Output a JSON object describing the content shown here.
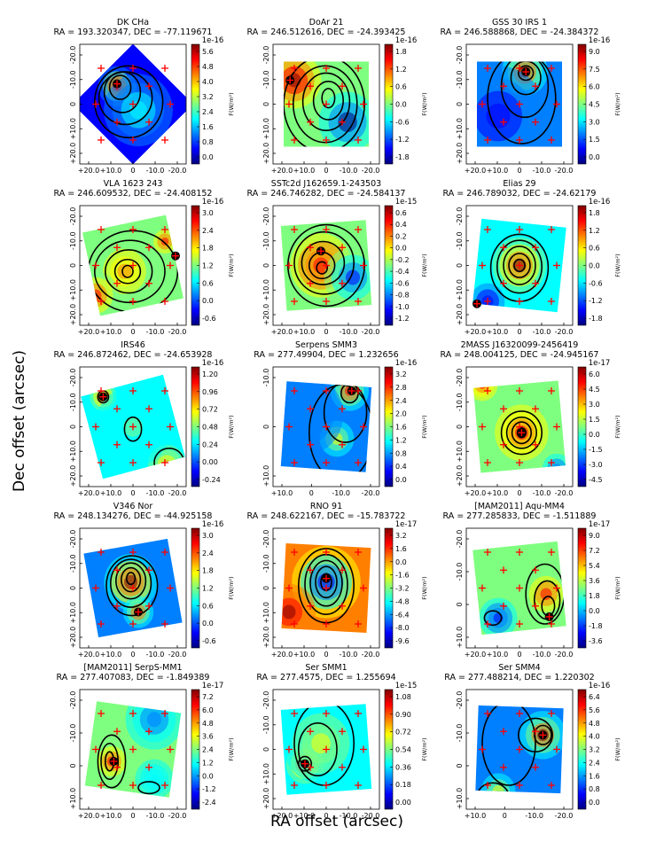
{
  "figure": {
    "xlabel": "RA offset (arcsec)",
    "ylabel": "Dec offset (arcsec)",
    "cbar_label": "F(W/m²)",
    "colormap": [
      "#00007f",
      "#0000ff",
      "#007fff",
      "#00ffff",
      "#7fff7f",
      "#ffff00",
      "#ff7f00",
      "#ff0000",
      "#7f0000"
    ],
    "contour_color": "#000000",
    "marker_color": "#ff0000"
  },
  "chart_data": [
    {
      "type": "heatmap",
      "name": "DK CHa",
      "coords": "RA = 193.320347, DEC = -77.119671",
      "exponent": "1e-16",
      "cbar_ticks": [
        "0.0",
        "0.8",
        "1.6",
        "2.4",
        "3.2",
        "4.0",
        "4.8",
        "5.6"
      ],
      "xticks": [
        "+20.0",
        "+10.0",
        "0",
        "-10.0",
        "-20.0"
      ],
      "yticks": [
        "-20.0",
        "-10.0",
        "0",
        "+10.0",
        "+20.0"
      ],
      "map_rotation": 45
    },
    {
      "type": "heatmap",
      "name": "DoAr 21",
      "coords": "RA = 246.512616, DEC = -24.393425",
      "exponent": "1e-16",
      "cbar_ticks": [
        "-1.8",
        "-1.2",
        "-0.6",
        "0.0",
        "0.6",
        "1.2",
        "1.8"
      ],
      "xticks": [
        "+20.0",
        "+10.0",
        "0",
        "-10.0",
        "-20.0"
      ],
      "yticks": [
        "-20.0",
        "-10.0",
        "0",
        "+10.0",
        "+20.0"
      ],
      "map_rotation": 0
    },
    {
      "type": "heatmap",
      "name": "GSS 30 IRS 1",
      "coords": "RA = 246.588868, DEC = -24.384372",
      "exponent": "1e-16",
      "cbar_ticks": [
        "0.0",
        "1.5",
        "3.0",
        "4.5",
        "6.0",
        "7.5",
        "9.0"
      ],
      "xticks": [
        "+20.0",
        "+10.0",
        "0",
        "-10.0",
        "-20.0"
      ],
      "yticks": [
        "-20.0",
        "-10.0",
        "0",
        "+10.0",
        "+20.0"
      ],
      "map_rotation": 0
    },
    {
      "type": "heatmap",
      "name": "VLA 1623 243",
      "coords": "RA = 246.609532, DEC = -24.408152",
      "exponent": "1e-16",
      "cbar_ticks": [
        "-0.6",
        "0.0",
        "0.6",
        "1.2",
        "1.8",
        "2.4",
        "3.0"
      ],
      "xticks": [
        "+20.0",
        "+10.0",
        "0",
        "-10.0",
        "-20.0"
      ],
      "yticks": [
        "-20.0",
        "-10.0",
        "0",
        "+10.0",
        "+20.0"
      ],
      "map_rotation": -12
    },
    {
      "type": "heatmap",
      "name": "SSTc2d J162659.1-243503",
      "coords": "RA = 246.746282, DEC = -24.584137",
      "exponent": "1e-15",
      "cbar_ticks": [
        "-1.2",
        "-1.0",
        "-0.8",
        "-0.6",
        "-0.4",
        "-0.2",
        "0.0",
        "0.2",
        "0.4",
        "0.6"
      ],
      "xticks": [
        "+20.0",
        "+10.0",
        "0",
        "-10.0",
        "-20.0"
      ],
      "yticks": [
        "-20.0",
        "-10.0",
        "0",
        "+10.0",
        "+20.0"
      ],
      "map_rotation": -4
    },
    {
      "type": "heatmap",
      "name": "Elias 29",
      "coords": "RA = 246.789032, DEC = -24.62179",
      "exponent": "1e-16",
      "cbar_ticks": [
        "-1.8",
        "-1.2",
        "-0.6",
        "0.0",
        "0.6",
        "1.2",
        "1.8"
      ],
      "xticks": [
        "+20.0",
        "+10.0",
        "0",
        "-10.0",
        "-20.0"
      ],
      "yticks": [
        "-20.0",
        "-10.0",
        "0",
        "+10.0",
        "+20.0"
      ],
      "map_rotation": 6
    },
    {
      "type": "heatmap",
      "name": "IRS46",
      "coords": "RA = 246.872462, DEC = -24.653928",
      "exponent": "1e-16",
      "cbar_ticks": [
        "-0.24",
        "0.00",
        "0.24",
        "0.48",
        "0.72",
        "0.96",
        "1.20"
      ],
      "xticks": [
        "+20.0",
        "+10.0",
        "0",
        "-10.0",
        "-20.0"
      ],
      "yticks": [
        "-20.0",
        "-10.0",
        "0",
        "+10.0",
        "+20.0"
      ],
      "map_rotation": -15
    },
    {
      "type": "heatmap",
      "name": "Serpens SMM3",
      "coords": "RA = 277.49904, DEC = 1.232656",
      "exponent": "1e-16",
      "cbar_ticks": [
        "0.0",
        "0.4",
        "0.8",
        "1.2",
        "1.6",
        "2.0",
        "2.4",
        "2.8",
        "3.2"
      ],
      "xticks": [
        "+10.0",
        "0",
        "-10.0",
        "-20.0"
      ],
      "yticks": [
        "-10.0",
        "0",
        "+10.0"
      ],
      "map_rotation": 4
    },
    {
      "type": "heatmap",
      "name": "2MASS J16320099-2456419",
      "coords": "RA = 248.004125, DEC = -24.945167",
      "exponent": "1e-17",
      "cbar_ticks": [
        "-4.5",
        "-3.0",
        "-1.5",
        "0.0",
        "1.5",
        "3.0",
        "4.5",
        "6.0"
      ],
      "xticks": [
        "+20.0",
        "+10.0",
        "0",
        "-10.0",
        "-20.0"
      ],
      "yticks": [
        "-20.0",
        "-10.0",
        "0",
        "+10.0",
        "+20.0"
      ],
      "map_rotation": -5
    },
    {
      "type": "heatmap",
      "name": "V346 Nor",
      "coords": "RA = 248.134276, DEC = -44.925158",
      "exponent": "1e-16",
      "cbar_ticks": [
        "-0.6",
        "0.0",
        "0.6",
        "1.2",
        "1.8",
        "2.4",
        "3.0"
      ],
      "xticks": [
        "+20.0",
        "+10.0",
        "0",
        "-10.0",
        "-20.0"
      ],
      "yticks": [
        "-20.0",
        "-10.0",
        "0",
        "+10.0",
        "+20.0"
      ],
      "map_rotation": -10
    },
    {
      "type": "heatmap",
      "name": "RNO 91",
      "coords": "RA = 248.622167, DEC = -15.783722",
      "exponent": "1e-17",
      "cbar_ticks": [
        "-9.6",
        "-8.0",
        "-6.4",
        "-4.8",
        "-3.2",
        "-1.6",
        "0.0",
        "1.6",
        "3.2"
      ],
      "xticks": [
        "+20.0",
        "+10.0",
        "0",
        "-10.0",
        "-20.0"
      ],
      "yticks": [
        "-20.0",
        "-10.0",
        "0",
        "+10.0",
        "+20.0"
      ],
      "map_rotation": 3
    },
    {
      "type": "heatmap",
      "name": "[MAM2011] Aqu-MM4",
      "coords": "RA = 277.285833, DEC = -1.511889",
      "exponent": "1e-17",
      "cbar_ticks": [
        "-3.6",
        "-1.8",
        "0.0",
        "1.8",
        "3.6",
        "5.4",
        "7.2",
        "9.0"
      ],
      "xticks": [
        "+20.0",
        "+10.0",
        "0",
        "-10.0",
        "-20.0"
      ],
      "yticks": [
        "-20.0",
        "-10.0",
        "0",
        "+10.0"
      ],
      "map_rotation": -6
    },
    {
      "type": "heatmap",
      "name": "[MAM2011] SerpS-MM1",
      "coords": "RA = 277.407083, DEC = -1.849389",
      "exponent": "1e-17",
      "cbar_ticks": [
        "-2.4",
        "-1.2",
        "0.0",
        "1.2",
        "2.4",
        "3.6",
        "4.8",
        "6.0",
        "7.2"
      ],
      "xticks": [
        "+20.0",
        "+10.0",
        "0",
        "-10.0",
        "-20.0"
      ],
      "yticks": [
        "-20.0",
        "-10.0",
        "0",
        "+10.0"
      ],
      "map_rotation": 8
    },
    {
      "type": "heatmap",
      "name": "Ser SMM1",
      "coords": "RA = 277.4575, DEC = 1.255694",
      "exponent": "1e-15",
      "cbar_ticks": [
        "0.00",
        "0.18",
        "0.36",
        "0.54",
        "0.72",
        "0.90",
        "1.08"
      ],
      "xticks": [
        "+20.0",
        "+10.0",
        "0",
        "-10.0",
        "-20.0"
      ],
      "yticks": [
        "-20.0",
        "-10.0",
        "0",
        "+10.0",
        "+20.0"
      ],
      "map_rotation": -4
    },
    {
      "type": "heatmap",
      "name": "Ser SMM4",
      "coords": "RA = 277.488214, DEC = 1.220302",
      "exponent": "1e-16",
      "cbar_ticks": [
        "0.0",
        "0.8",
        "1.6",
        "2.4",
        "3.2",
        "4.0",
        "4.8",
        "5.6",
        "6.4"
      ],
      "xticks": [
        "+10.0",
        "0",
        "-10.0",
        "-20.0"
      ],
      "yticks": [
        "-20.0",
        "-10.0",
        "0",
        "+10.0"
      ],
      "map_rotation": 2
    }
  ]
}
